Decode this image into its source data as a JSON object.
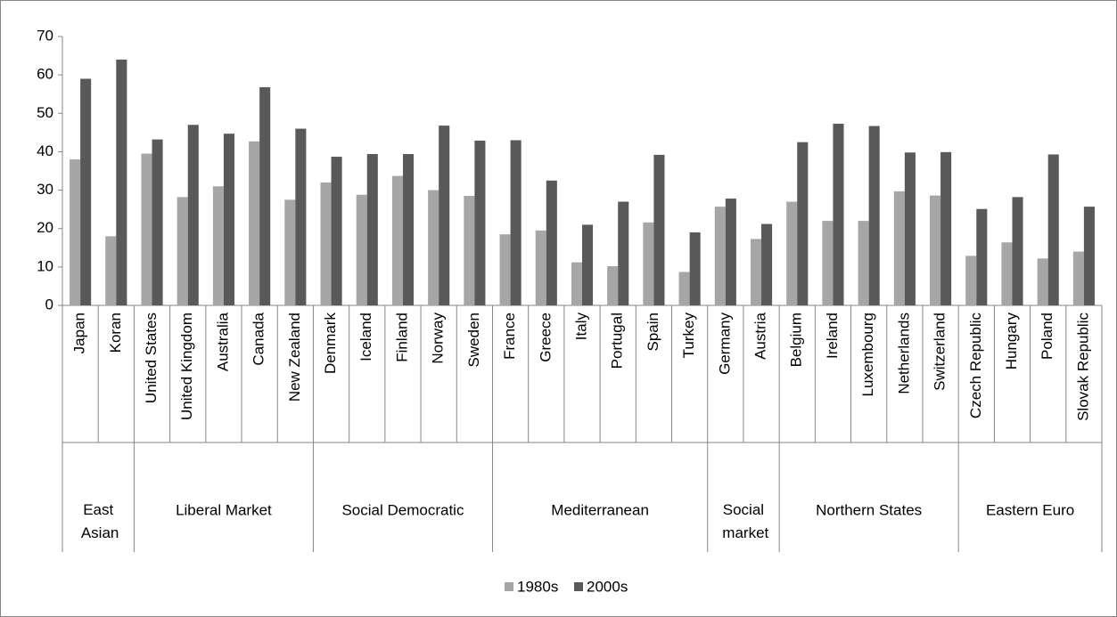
{
  "chart_data": {
    "type": "bar",
    "groups": [
      {
        "label": "East Asian",
        "categories": [
          "Japan",
          "Koran"
        ]
      },
      {
        "label": "Liberal Market",
        "categories": [
          "United States",
          "United Kingdom",
          "Australia",
          "Canada",
          "New Zealand"
        ]
      },
      {
        "label": "Social Democratic",
        "categories": [
          "Denmark",
          "Iceland",
          "Finland",
          "Norway",
          "Sweden"
        ]
      },
      {
        "label": "Mediterranean",
        "categories": [
          "France",
          "Greece",
          "Italy",
          "Portugal",
          "Spain",
          "Turkey"
        ]
      },
      {
        "label": "Social market",
        "categories": [
          "Germany",
          "Austria"
        ]
      },
      {
        "label": "Northern States",
        "categories": [
          "Belgium",
          "Ireland",
          "Luxembourg",
          "Netherlands",
          "Switzerland"
        ]
      },
      {
        "label": "Eastern Euro",
        "categories": [
          "Czech Republic",
          "Hungary",
          "Poland",
          "Slovak Republic"
        ]
      }
    ],
    "series": [
      {
        "name": "1980s",
        "color": "#a6a6a6",
        "values": [
          38,
          18,
          39.5,
          28.2,
          31,
          42.7,
          27.5,
          32,
          28.8,
          33.7,
          30,
          28.5,
          18.5,
          19.5,
          11.2,
          10.2,
          21.6,
          8.7,
          25.7,
          17.3,
          27,
          22,
          22,
          29.7,
          28.6,
          12.9,
          16.4,
          12.2,
          14
        ]
      },
      {
        "name": "2000s",
        "color": "#595959",
        "values": [
          59,
          64,
          43.2,
          47,
          44.7,
          56.8,
          46,
          38.7,
          39.4,
          39.4,
          46.8,
          42.9,
          43,
          32.5,
          21,
          27,
          39.2,
          19,
          27.8,
          21.2,
          42.5,
          47.3,
          46.7,
          39.8,
          39.9,
          25.1,
          28.2,
          39.3,
          25.7
        ]
      }
    ],
    "ylim": [
      0,
      70
    ],
    "yticks": [
      0,
      10,
      20,
      30,
      40,
      50,
      60,
      70
    ],
    "legend": "bottom"
  }
}
